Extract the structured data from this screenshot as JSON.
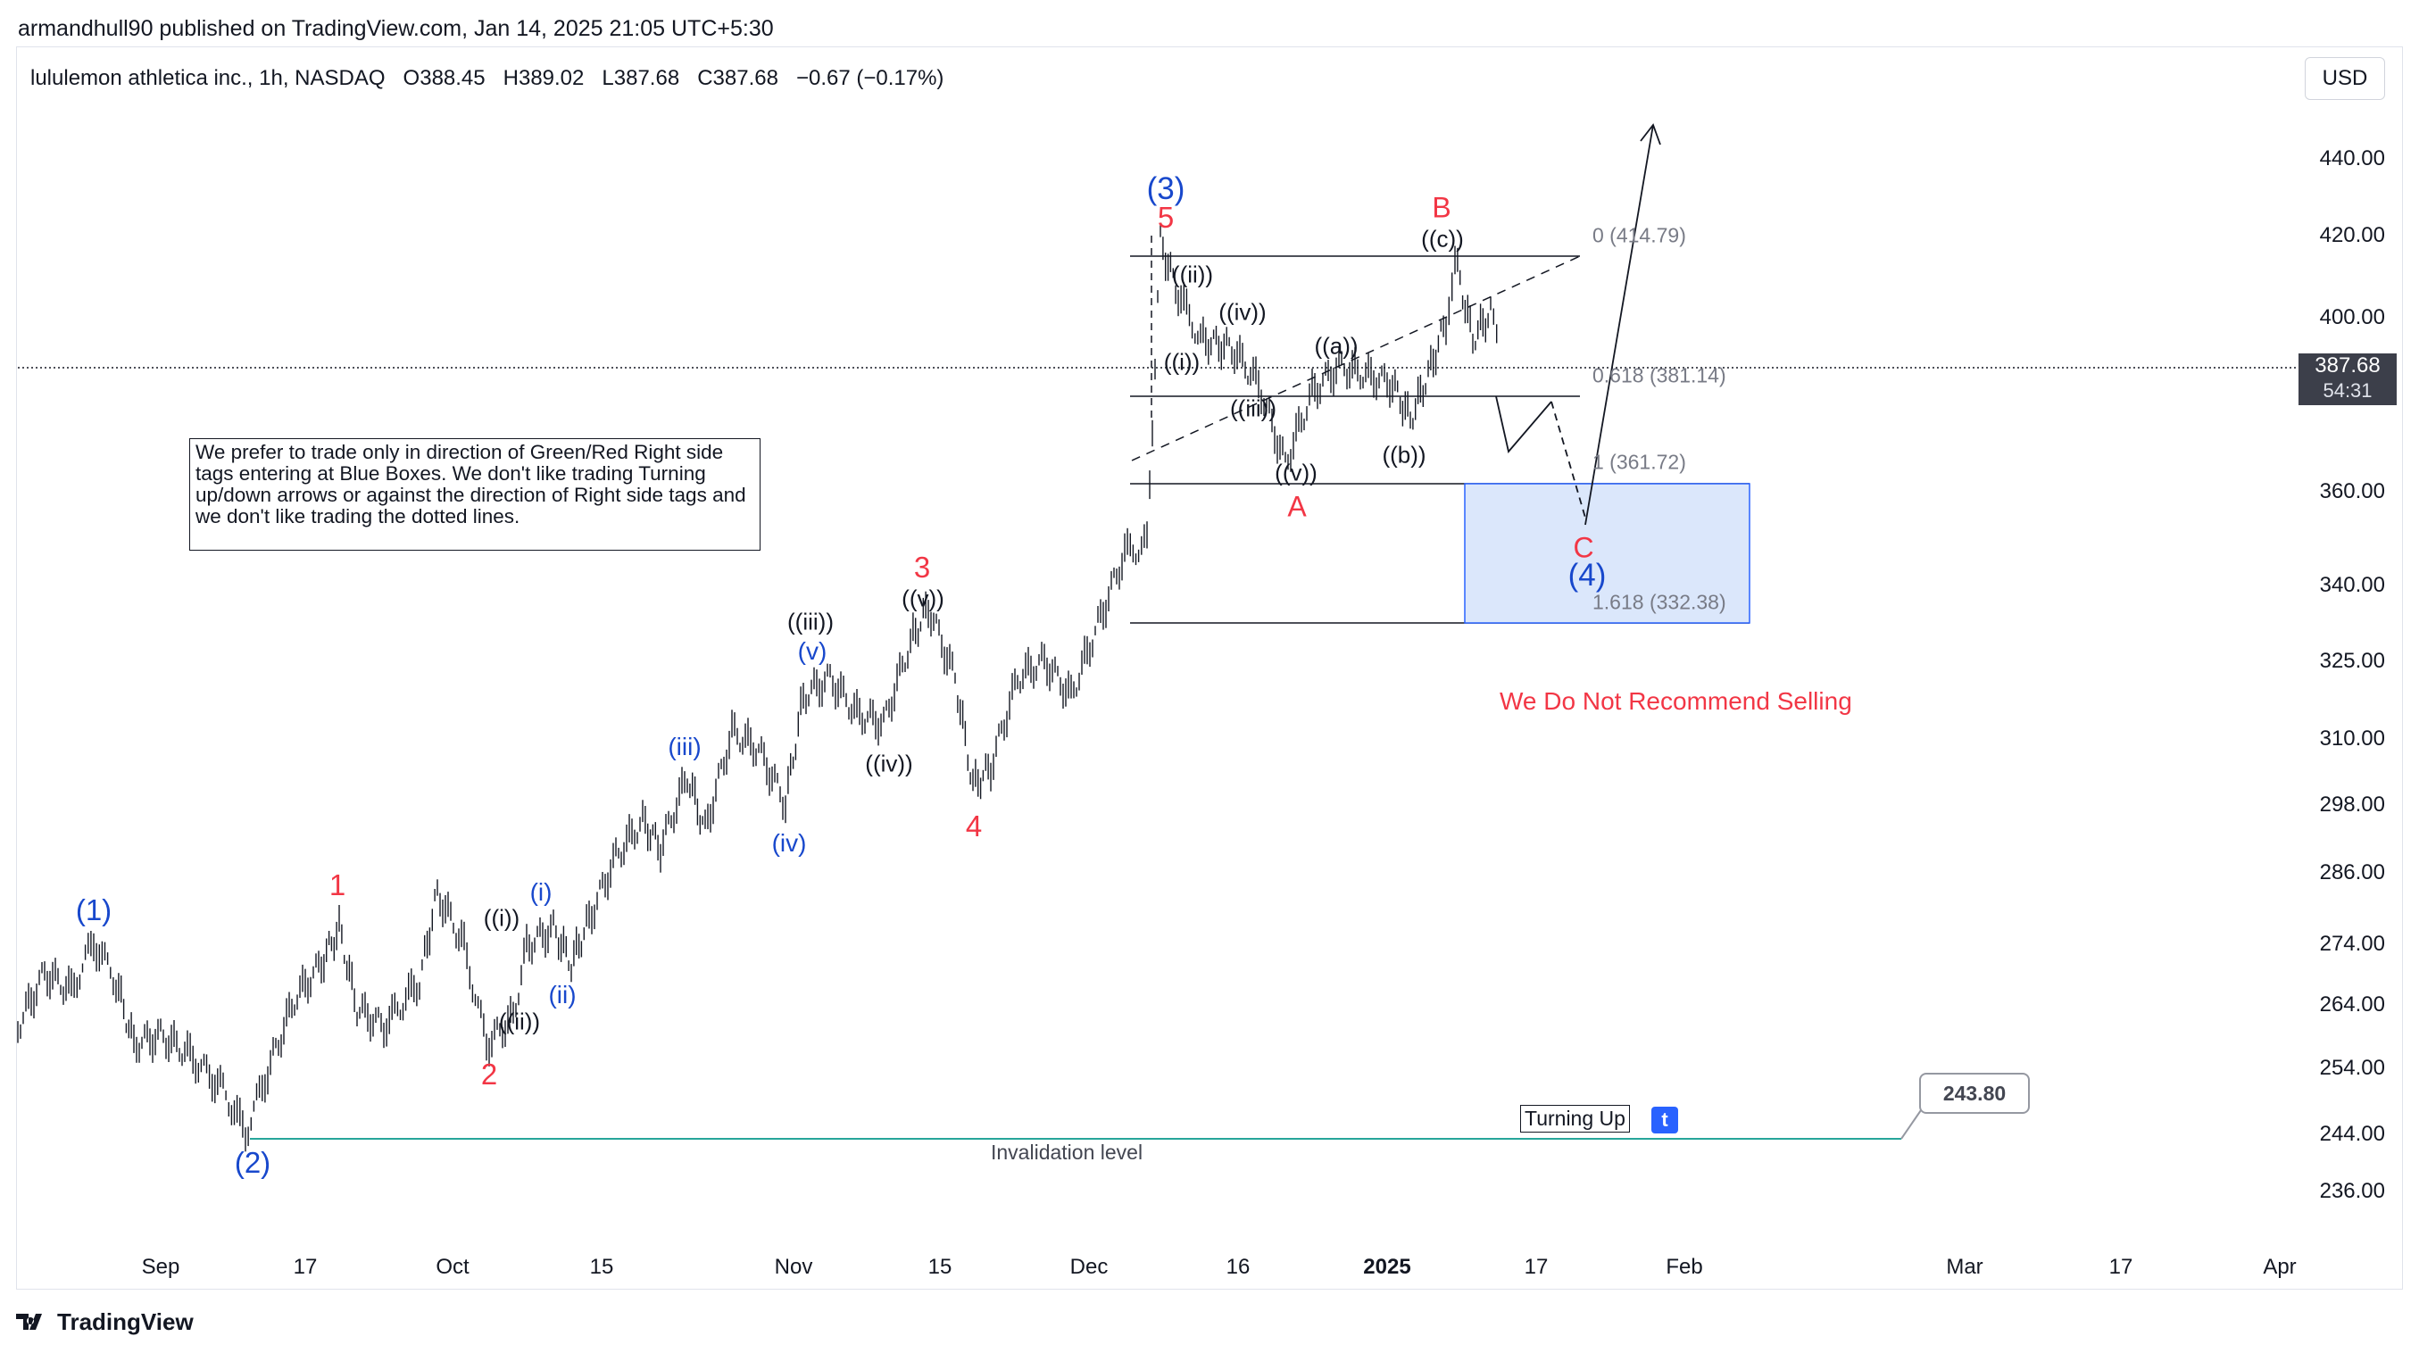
{
  "published": "armandhull90 published on TradingView.com, Jan 14, 2025 21:05 UTC+5:30",
  "symbol": {
    "name": "lululemon athletica inc., 1h, NASDAQ",
    "open": "O388.45",
    "high": "H389.02",
    "low": "L387.68",
    "close": "C387.68",
    "change": "−0.67 (−0.17%)"
  },
  "currency": "USD",
  "price_axis": [
    "440.00",
    "420.00",
    "400.00",
    "360.00",
    "340.00",
    "325.00",
    "310.00",
    "298.00",
    "286.00",
    "274.00",
    "264.00",
    "254.00",
    "244.00",
    "236.00"
  ],
  "time_axis": [
    {
      "label": "Sep",
      "bold": false
    },
    {
      "label": "17",
      "bold": false
    },
    {
      "label": "Oct",
      "bold": false
    },
    {
      "label": "15",
      "bold": false
    },
    {
      "label": "Nov",
      "bold": false
    },
    {
      "label": "15",
      "bold": false
    },
    {
      "label": "Dec",
      "bold": false
    },
    {
      "label": "16",
      "bold": false
    },
    {
      "label": "2025",
      "bold": true
    },
    {
      "label": "17",
      "bold": false
    },
    {
      "label": "Feb",
      "bold": false
    },
    {
      "label": "Mar",
      "bold": false
    },
    {
      "label": "17",
      "bold": false
    },
    {
      "label": "Apr",
      "bold": false
    }
  ],
  "last_price": {
    "price": "387.68",
    "countdown": "54:31"
  },
  "note": "We prefer to trade only in direction of Green/Red Right side tags entering at Blue Boxes. We don't like trading Turning up/down arrows or against the direction of Right side tags and we don't like trading the dotted lines.",
  "wave_labels": {
    "w1b": "(1)",
    "w2b": "(2)",
    "w3b": "(3)",
    "w4b": "(4)",
    "r1": "1",
    "r2": "2",
    "r3": "3",
    "r4": "4",
    "r5": "5",
    "rA": "A",
    "rB": "B",
    "rC": "C",
    "bi": "(i)",
    "bii": "(ii)",
    "biii": "(iii)",
    "biv": "(iv)",
    "bv": "(v)",
    "k_i": "((i))",
    "k_ii": "((ii))",
    "k_iii": "((iii))",
    "k_iv": "((iv))",
    "k_v": "((v))",
    "k2_i": "((i))",
    "k2_ii": "((ii))",
    "k2_iii": "((iii))",
    "k2_iv": "((iv))",
    "k2_v": "((v))",
    "k_a": "((a))",
    "k_b": "((b))",
    "k_c": "((c))"
  },
  "fib_levels": {
    "f0": "0 (414.79)",
    "f618": "0.618 (381.14)",
    "f1": "1 (361.72)",
    "f1618": "1.618 (332.38)"
  },
  "warning": "We Do Not Recommend Selling",
  "turning_up": "Turning Up",
  "turning_badge": "t",
  "invalidation_price": "243.80",
  "invalidation_label": "Invalidation level",
  "brand": "TradingView",
  "colors": {
    "red": "#f23645",
    "blue": "#1848cc",
    "box": "#dbe7fb",
    "box_border": "#2962ff",
    "teal": "#26a69a"
  }
}
